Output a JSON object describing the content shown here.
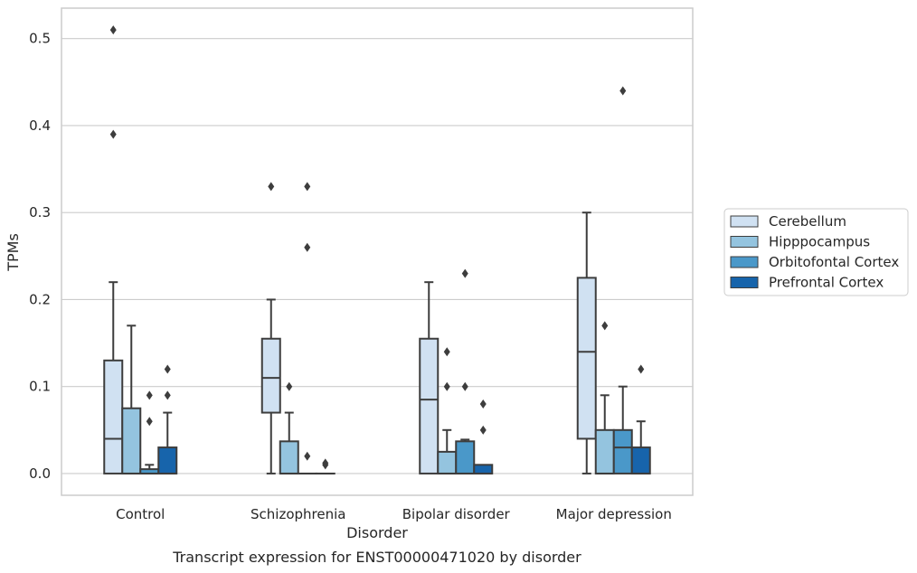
{
  "colors": {
    "Cerebellum": "#d0e1f2",
    "Hipppocampus": "#94c4df",
    "Orbitofontal Cortex": "#4a98c9",
    "Prefrontal Cortex": "#1764ab",
    "edge": "#3d3d3d",
    "grid": "#cccccc",
    "frame": "#cccccc"
  },
  "chart_data": {
    "type": "box",
    "xlabel": "Disorder",
    "ylabel": "TPMs",
    "caption": "Transcript expression for ENST00000471020 by disorder",
    "ylim": [
      -0.025,
      0.535
    ],
    "yticks": [
      0.0,
      0.1,
      0.2,
      0.3,
      0.4,
      0.5
    ],
    "ytick_labels": [
      "0.0",
      "0.1",
      "0.2",
      "0.3",
      "0.4",
      "0.5"
    ],
    "grid": true,
    "legend_position": "right",
    "categories": [
      "Control",
      "Schizophrenia",
      "Bipolar disorder",
      "Major depression"
    ],
    "series": [
      {
        "name": "Cerebellum",
        "boxes": [
          {
            "whisker_low": 0.0,
            "q1": 0.0,
            "median": 0.04,
            "q3": 0.13,
            "whisker_high": 0.22,
            "outliers": [
              0.39,
              0.51
            ]
          },
          {
            "whisker_low": 0.0,
            "q1": 0.07,
            "median": 0.11,
            "q3": 0.155,
            "whisker_high": 0.2,
            "outliers": [
              0.33
            ]
          },
          {
            "whisker_low": 0.0,
            "q1": 0.0,
            "median": 0.085,
            "q3": 0.155,
            "whisker_high": 0.22,
            "outliers": []
          },
          {
            "whisker_low": 0.0,
            "q1": 0.04,
            "median": 0.14,
            "q3": 0.225,
            "whisker_high": 0.3,
            "outliers": []
          }
        ]
      },
      {
        "name": "Hipppocampus",
        "boxes": [
          {
            "whisker_low": 0.0,
            "q1": 0.0,
            "median": 0.0,
            "q3": 0.075,
            "whisker_high": 0.17,
            "outliers": []
          },
          {
            "whisker_low": 0.0,
            "q1": 0.0,
            "median": 0.0,
            "q3": 0.037,
            "whisker_high": 0.07,
            "outliers": [
              0.1
            ]
          },
          {
            "whisker_low": 0.0,
            "q1": 0.0,
            "median": 0.0,
            "q3": 0.025,
            "whisker_high": 0.05,
            "outliers": [
              0.1,
              0.14
            ]
          },
          {
            "whisker_low": 0.0,
            "q1": 0.0,
            "median": 0.0,
            "q3": 0.05,
            "whisker_high": 0.09,
            "outliers": [
              0.17
            ]
          }
        ]
      },
      {
        "name": "Orbitofontal Cortex",
        "boxes": [
          {
            "whisker_low": 0.0,
            "q1": 0.0,
            "median": 0.0,
            "q3": 0.005,
            "whisker_high": 0.01,
            "outliers": [
              0.06,
              0.09
            ]
          },
          {
            "whisker_low": 0.0,
            "q1": 0.0,
            "median": 0.0,
            "q3": 0.0,
            "whisker_high": 0.0,
            "outliers": [
              0.02,
              0.26,
              0.33
            ]
          },
          {
            "whisker_low": 0.0,
            "q1": 0.0,
            "median": 0.0,
            "q3": 0.037,
            "whisker_high": 0.039,
            "outliers": [
              0.1,
              0.23
            ]
          },
          {
            "whisker_low": 0.0,
            "q1": 0.0,
            "median": 0.03,
            "q3": 0.05,
            "whisker_high": 0.1,
            "outliers": [
              0.44
            ]
          }
        ]
      },
      {
        "name": "Prefrontal Cortex",
        "boxes": [
          {
            "whisker_low": 0.0,
            "q1": 0.0,
            "median": 0.0,
            "q3": 0.03,
            "whisker_high": 0.07,
            "outliers": [
              0.09,
              0.12
            ]
          },
          {
            "whisker_low": 0.0,
            "q1": 0.0,
            "median": 0.0,
            "q3": 0.0,
            "whisker_high": 0.0,
            "outliers": [
              0.01,
              0.012
            ]
          },
          {
            "whisker_low": 0.0,
            "q1": 0.0,
            "median": 0.0,
            "q3": 0.01,
            "whisker_high": 0.01,
            "outliers": [
              0.05,
              0.08
            ]
          },
          {
            "whisker_low": 0.0,
            "q1": 0.0,
            "median": 0.0,
            "q3": 0.03,
            "whisker_high": 0.06,
            "outliers": [
              0.12
            ]
          }
        ]
      }
    ]
  }
}
